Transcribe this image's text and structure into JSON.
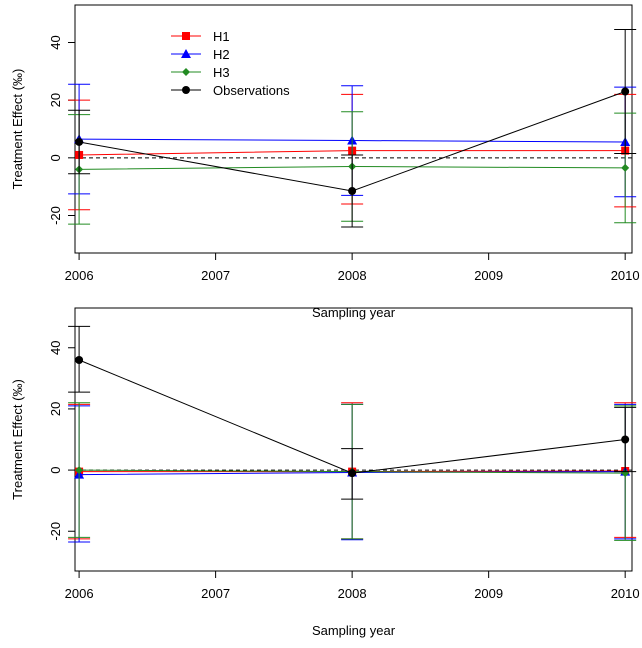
{
  "chart_data": [
    {
      "type": "line",
      "title": "",
      "xlabel": "Sampling year",
      "ylabel": "Treatment Effect (‰)",
      "xlim": [
        2005.97,
        2010.05
      ],
      "ylim": [
        -33,
        53
      ],
      "xticks": [
        2006,
        2007,
        2008,
        2009,
        2010
      ],
      "yticks": [
        -20,
        0,
        20,
        40
      ],
      "x": [
        2006,
        2008,
        2010
      ],
      "reference_line": 0,
      "legend": {
        "position": "top-left"
      },
      "series": [
        {
          "name": "H1",
          "color": "#ff0000",
          "marker": "square",
          "values": [
            1,
            2.5,
            2.5
          ],
          "lower": [
            -18,
            -16,
            -17
          ],
          "upper": [
            20,
            22,
            22
          ]
        },
        {
          "name": "H2",
          "color": "#0000ff",
          "marker": "triangle",
          "values": [
            6.5,
            6,
            5.5
          ],
          "lower": [
            -12.5,
            -13,
            -13.5
          ],
          "upper": [
            25.5,
            25,
            24.5
          ]
        },
        {
          "name": "H3",
          "color": "#228b22",
          "marker": "diamond",
          "values": [
            -4,
            -3,
            -3.5
          ],
          "lower": [
            -23,
            -22,
            -22.5
          ],
          "upper": [
            15,
            16,
            15.5
          ]
        },
        {
          "name": "Observations",
          "color": "#000000",
          "marker": "circle",
          "values": [
            5.5,
            -11.5,
            23
          ],
          "lower": [
            -5.5,
            -24,
            1.5
          ],
          "upper": [
            16.5,
            1,
            44.5
          ]
        }
      ]
    },
    {
      "type": "line",
      "title": "",
      "xlabel": "Sampling year",
      "ylabel": "Treatment Effect (‰)",
      "xlim": [
        2005.97,
        2010.05
      ],
      "ylim": [
        -33,
        53
      ],
      "xticks": [
        2006,
        2007,
        2008,
        2009,
        2010
      ],
      "yticks": [
        -20,
        0,
        20,
        40
      ],
      "x": [
        2006,
        2008,
        2010
      ],
      "reference_line": 0,
      "series": [
        {
          "name": "H1",
          "color": "#ff0000",
          "marker": "square",
          "values": [
            -0.5,
            -0.5,
            -0.3
          ],
          "lower": [
            -22.5,
            -22.5,
            -22
          ],
          "upper": [
            21.5,
            22,
            22
          ]
        },
        {
          "name": "H2",
          "color": "#0000ff",
          "marker": "triangle",
          "values": [
            -1.5,
            -0.8,
            -0.5
          ],
          "lower": [
            -23.5,
            -22.8,
            -22.5
          ],
          "upper": [
            21,
            21.5,
            21.5
          ]
        },
        {
          "name": "H3",
          "color": "#228b22",
          "marker": "diamond",
          "values": [
            0,
            -0.5,
            -1
          ],
          "lower": [
            -22,
            -22.5,
            -23
          ],
          "upper": [
            22,
            21.5,
            21
          ]
        },
        {
          "name": "Observations",
          "color": "#000000",
          "marker": "circle",
          "values": [
            36,
            -1,
            10
          ],
          "lower": [
            25.5,
            -9.5,
            -0.5
          ],
          "upper": [
            47,
            7,
            20.5
          ]
        }
      ]
    }
  ]
}
